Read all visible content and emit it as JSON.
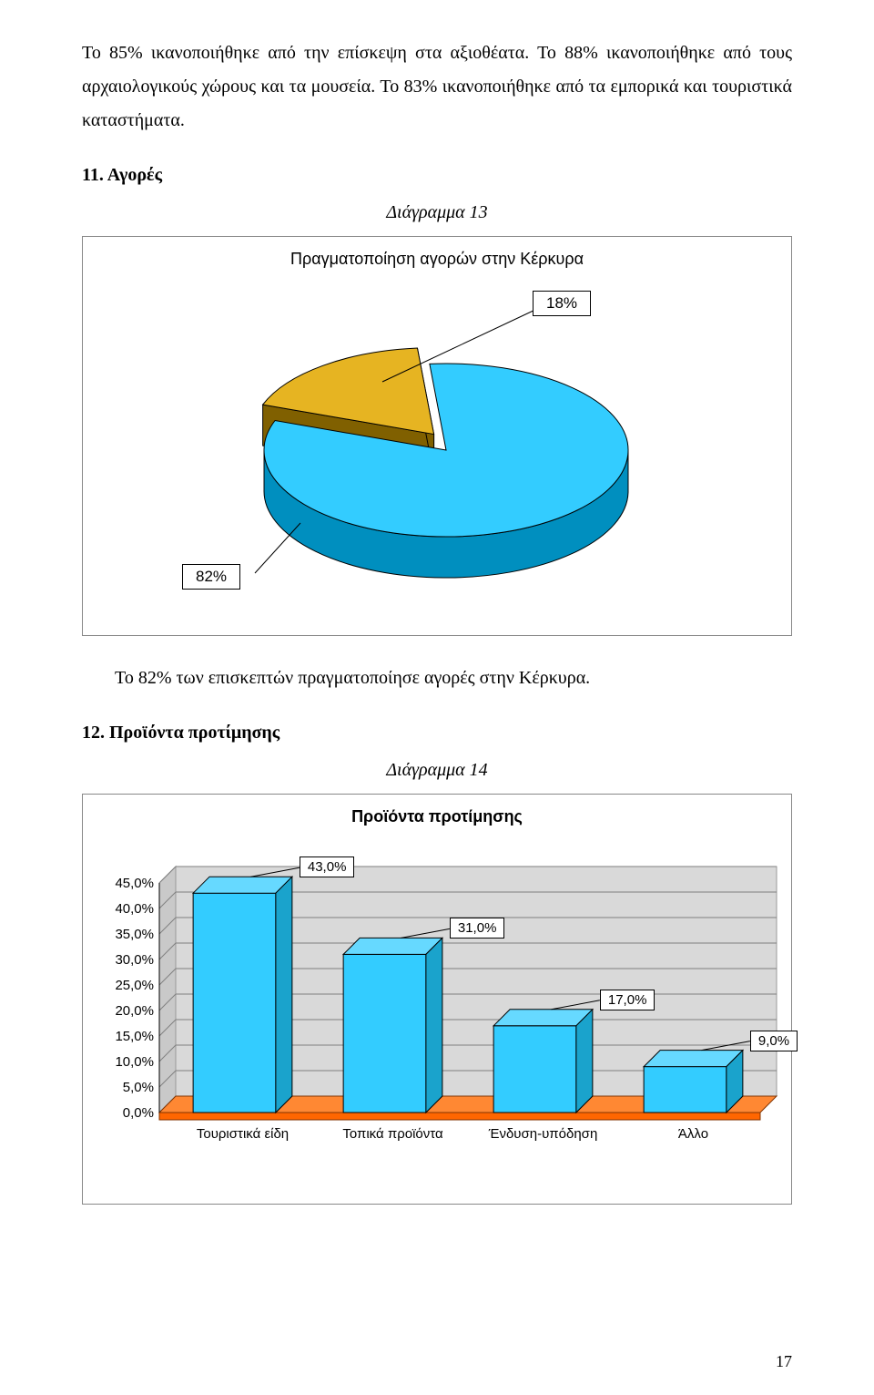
{
  "paragraph": "Το 85% ικανοποιήθηκε από την επίσκεψη στα αξιοθέατα. Το 88% ικανοποιήθηκε από τους αρχαιολογικούς χώρους και τα μουσεία. Το 83% ικανοποιήθηκε από τα ε­μπορικά και τουριστικά καταστήματα.",
  "section11": {
    "heading": "11. Αγορές",
    "diagram_label": "Διάγραμμα 13",
    "chart": {
      "type": "pie",
      "title": "Πραγματοποίηση αγορών στην Κέρκυρα",
      "slices": [
        {
          "label": "18%",
          "value": 18,
          "color": "#e6b422",
          "side_color": "#806000"
        },
        {
          "label": "82%",
          "value": 82,
          "color": "#33ccff",
          "side_color": "#008fbf"
        }
      ],
      "background_color": "#ffffff",
      "border_color": "#888888",
      "label_fontsize": 17
    },
    "interpretation": "Το 82% των επισκεπτών πραγματοποίησε αγορές στην Κέρκυρα."
  },
  "section12": {
    "heading": "12. Προϊόντα προτίμησης",
    "diagram_label": "Διάγραμμα 14",
    "chart": {
      "type": "bar",
      "title": "Προϊόντα προτίμησης",
      "categories": [
        "Τουριστικά είδη",
        "Τοπικά προϊόντα",
        "Ένδυση-υπόδηση",
        "Άλλο"
      ],
      "values": [
        43.0,
        31.0,
        17.0,
        9.0
      ],
      "value_labels": [
        "43,0%",
        "31,0%",
        "17,0%",
        "9,0%"
      ],
      "bar_color": "#33ccff",
      "bar_top_color": "#66d9ff",
      "bar_side_color": "#1aa3cc",
      "floor_color": "#ff6600",
      "floor_top_color": "#ff8833",
      "background_color": "#ffffff",
      "wall_color": "#d9d9d9",
      "ylim": [
        0,
        45
      ],
      "ytick_step": 5,
      "yticks": [
        "0,0%",
        "5,0%",
        "10,0%",
        "15,0%",
        "20,0%",
        "25,0%",
        "30,0%",
        "35,0%",
        "40,0%",
        "45,0%"
      ],
      "label_fontsize": 15,
      "bar_width_ratio": 0.55
    }
  },
  "page_number": "17"
}
